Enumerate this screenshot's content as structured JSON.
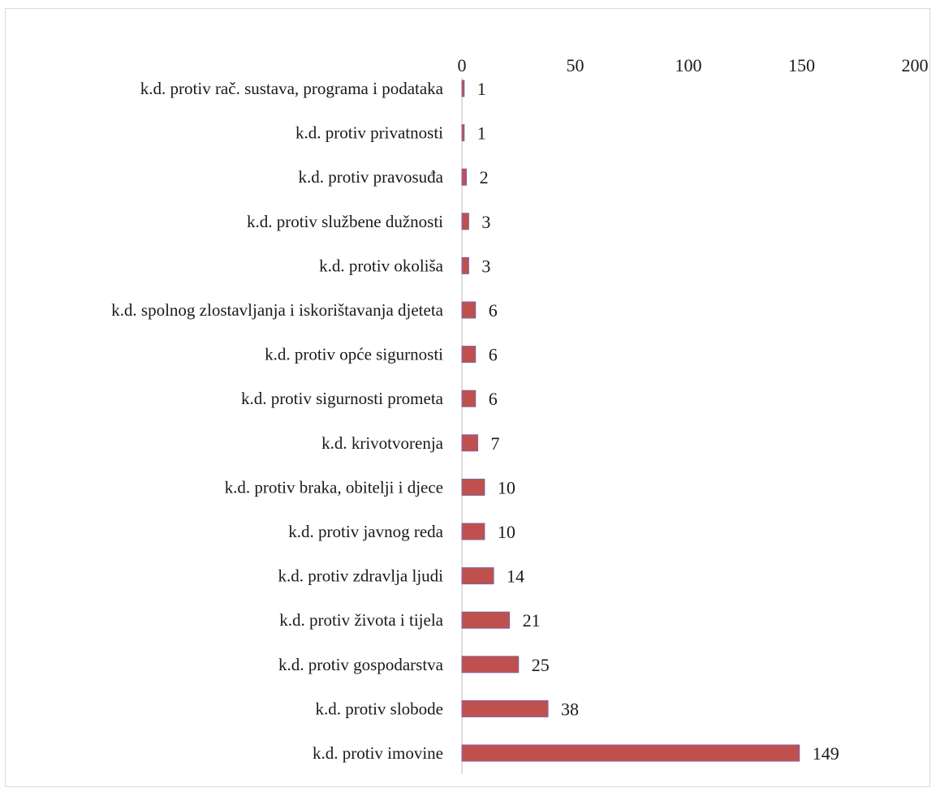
{
  "chart_data": {
    "type": "bar",
    "orientation": "horizontal",
    "title": "",
    "xlabel": "",
    "ylabel": "",
    "xlim": [
      0,
      200
    ],
    "x_ticks": [
      "0",
      "50",
      "100",
      "150",
      "200"
    ],
    "axis_position": "top",
    "grid": false,
    "legend": "none",
    "bar_color": "#c0504d",
    "bar_edge_color": "#8064a2",
    "categories": [
      "k.d. protiv rač. sustava, programa i podataka",
      "k.d. protiv privatnosti",
      "k.d. protiv pravosuđa",
      "k.d. protiv službene dužnosti",
      "k.d. protiv okoliša",
      "k.d. spolnog zlostavljanja i iskorištavanja djeteta",
      "k.d. protiv opće sigurnosti",
      "k.d. protiv sigurnosti prometa",
      "k.d. krivotvorenja",
      "k.d. protiv braka, obitelji i djece",
      "k.d. protiv javnog reda",
      "k.d. protiv zdravlja ljudi",
      "k.d. protiv života i tijela",
      "k.d. protiv gospodarstva",
      "k.d. protiv slobode",
      "k.d. protiv imovine"
    ],
    "values": [
      1,
      1,
      2,
      3,
      3,
      6,
      6,
      6,
      7,
      10,
      10,
      14,
      21,
      25,
      38,
      149
    ]
  }
}
